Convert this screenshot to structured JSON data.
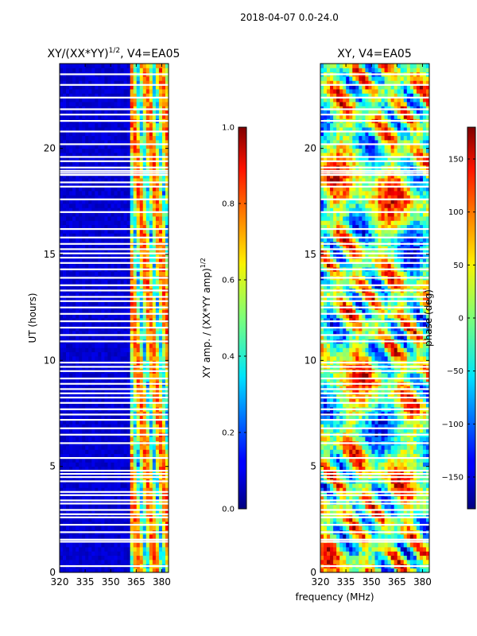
{
  "chart_data": {
    "suptitle": "2018-04-07 0.0-24.0",
    "shared_xlabel": "frequency (MHz)",
    "panels": [
      {
        "type": "heatmap",
        "title_text": "XY/(XX*YY)",
        "title_sup": "1/2",
        "title_suffix": ", V4=EA05",
        "ylabel": "UT (hours)",
        "xlim": [
          320,
          384
        ],
        "ylim": [
          0,
          24
        ],
        "xticks": [
          320,
          335,
          350,
          365,
          380
        ],
        "yticks": [
          0,
          5,
          10,
          15,
          20
        ],
        "colormap": "jet",
        "colorbar": {
          "label_text": "XY amp. / (XX*YY amp)",
          "label_sup": "1/2",
          "range": [
            0.0,
            1.0
          ],
          "ticks": [
            "0.0",
            "0.2",
            "0.4",
            "0.6",
            "0.8",
            "1.0"
          ],
          "tick_values": [
            0.0,
            0.2,
            0.4,
            0.6,
            0.8,
            1.0
          ]
        }
      },
      {
        "type": "heatmap",
        "title_text": "XY, V4=EA05",
        "xlim": [
          320,
          384
        ],
        "ylim": [
          0,
          24
        ],
        "xticks": [
          320,
          335,
          350,
          365,
          380
        ],
        "yticks": [
          0,
          5,
          10,
          15,
          20
        ],
        "colormap": "jet",
        "colorbar": {
          "label_text": "phase (deg)",
          "range": [
            -180,
            180
          ],
          "ticks": [
            "150",
            "100",
            "50",
            "0",
            "−50",
            "−100",
            "−150"
          ],
          "tick_values": [
            150,
            100,
            50,
            0,
            -50,
            -100,
            -150
          ]
        }
      }
    ],
    "flagged_hours": [
      0.3,
      1.45,
      1.55,
      1.9,
      2.25,
      2.6,
      2.75,
      2.95,
      3.25,
      3.4,
      3.65,
      3.8,
      4.3,
      4.5,
      4.65,
      4.8,
      5.4,
      6.1,
      6.5,
      6.8,
      7.2,
      7.45,
      7.7,
      8.0,
      8.25,
      8.45,
      8.65,
      8.9,
      9.15,
      9.5,
      9.7,
      9.9,
      10.9,
      11.2,
      11.55,
      11.85,
      12.2,
      12.5,
      12.8,
      13.0,
      13.3,
      13.55,
      13.9,
      14.3,
      14.6,
      14.85,
      15.05,
      15.25,
      15.5,
      15.8,
      16.2,
      17.0,
      17.6,
      18.2,
      18.4,
      18.75,
      18.85,
      18.95,
      19.1,
      19.4,
      19.6,
      20.2,
      20.8,
      21.3,
      21.6,
      21.85,
      22.4,
      23.0,
      23.5
    ]
  }
}
